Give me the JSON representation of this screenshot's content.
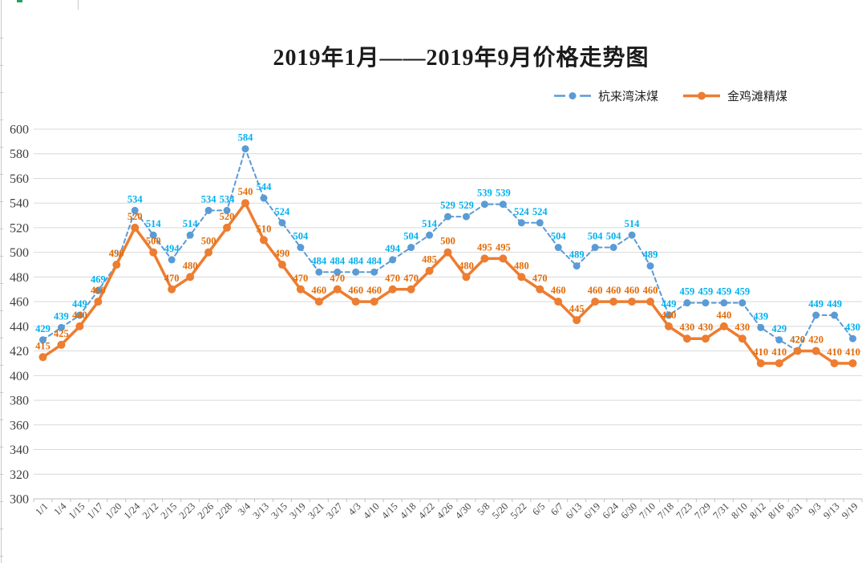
{
  "chart_data": {
    "type": "line",
    "title": "2019年1月——2019年9月价格走势图",
    "categories": [
      "1/1",
      "1/4",
      "1/15",
      "1/17",
      "1/20",
      "1/24",
      "2/12",
      "2/15",
      "2/23",
      "2/26",
      "2/28",
      "3/4",
      "3/13",
      "3/15",
      "3/19",
      "3/21",
      "3/27",
      "4/3",
      "4/10",
      "4/15",
      "4/18",
      "4/22",
      "4/26",
      "4/30",
      "5/8",
      "5/20",
      "5/22",
      "6/5",
      "6/7",
      "6/13",
      "6/19",
      "6/24",
      "6/30",
      "7/10",
      "7/18",
      "7/23",
      "7/29",
      "7/31",
      "8/10",
      "8/12",
      "8/16",
      "8/31",
      "9/3",
      "9/13",
      "9/19"
    ],
    "series": [
      {
        "name": "杭来湾沫煤",
        "line_style": "dashed",
        "line_color": "#5B9BD5",
        "marker_color": "#5B9BD5",
        "label_color": "#00B0F0",
        "values": [
          429,
          439,
          449,
          469,
          490,
          534,
          514,
          494,
          514,
          534,
          534,
          584,
          544,
          524,
          504,
          484,
          484,
          484,
          484,
          494,
          504,
          514,
          529,
          529,
          539,
          539,
          524,
          524,
          504,
          489,
          504,
          504,
          514,
          489,
          449,
          459,
          459,
          459,
          459,
          439,
          429,
          420,
          449,
          449,
          430
        ]
      },
      {
        "name": "金鸡滩精煤",
        "line_style": "solid",
        "line_color": "#ED7D31",
        "marker_color": "#ED7D31",
        "label_color": "#E36C09",
        "values": [
          415,
          425,
          440,
          460,
          490,
          520,
          500,
          470,
          480,
          500,
          520,
          540,
          510,
          490,
          470,
          460,
          470,
          460,
          460,
          470,
          470,
          485,
          500,
          480,
          495,
          495,
          480,
          470,
          460,
          445,
          460,
          460,
          460,
          460,
          440,
          430,
          430,
          440,
          430,
          410,
          410,
          420,
          420,
          410,
          410
        ]
      }
    ],
    "ylim": [
      300,
      600
    ],
    "ytick_step": 20,
    "yticks": [
      300,
      320,
      340,
      360,
      380,
      400,
      420,
      440,
      460,
      480,
      500,
      520,
      540,
      560,
      580,
      600
    ],
    "grid": true,
    "data_labels": true,
    "legend_position": "top-right",
    "grid_color": "#D9D9D9",
    "axis_line_color": "#BFBFBF",
    "axis_text_color": "#404040"
  }
}
